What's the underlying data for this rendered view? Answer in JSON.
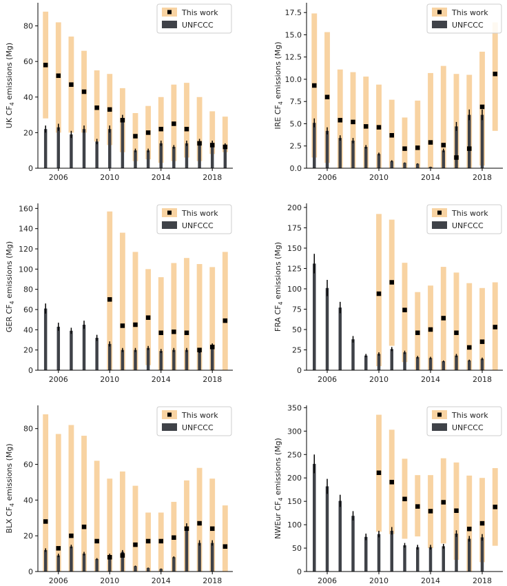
{
  "legend": {
    "work_label": "This work",
    "unfccc_label": "UNFCCC"
  },
  "colors": {
    "range": "#f8d3a2",
    "work": "#000000",
    "unfccc": "#3f4248",
    "error": "#000000",
    "axis": "#000000"
  },
  "chart_data": [
    {
      "id": "uk",
      "type": "bar",
      "title": "",
      "ylabel_pre": "UK CF",
      "ylabel_sub": "4",
      "ylabel_post": " emissions (Mg)",
      "ylim": [
        0,
        93
      ],
      "yticks": [
        0,
        20,
        40,
        60,
        80
      ],
      "xlim": [
        2004.4,
        2019.6
      ],
      "xticks": [
        2006,
        2010,
        2014,
        2018
      ],
      "xtick_labels": [
        "2006",
        "2010",
        "2014",
        "2018"
      ],
      "legend_position": "top-right",
      "series": [
        {
          "name": "This work",
          "kind": "range-and-point",
          "x": [
            2005,
            2006,
            2007,
            2008,
            2009,
            2010,
            2011,
            2012,
            2013,
            2014,
            2015,
            2016,
            2017,
            2018,
            2019
          ],
          "low": [
            28,
            20,
            20,
            20,
            15,
            13,
            9,
            4,
            5,
            3,
            4,
            6,
            4,
            8,
            9
          ],
          "high": [
            88,
            82,
            74,
            66,
            55,
            53,
            45,
            31,
            35,
            40,
            47,
            48,
            40,
            32,
            29
          ],
          "value": [
            58,
            52,
            47,
            43,
            34,
            33,
            27,
            18,
            20,
            22,
            25,
            22,
            14,
            13,
            12
          ]
        },
        {
          "name": "UNFCCC",
          "kind": "bar-with-error",
          "x": [
            2005,
            2006,
            2007,
            2008,
            2009,
            2010,
            2011,
            2012,
            2013,
            2014,
            2015,
            2016,
            2017,
            2018,
            2019
          ],
          "value": [
            22,
            23,
            19,
            22,
            15,
            22,
            28,
            10,
            10,
            14,
            12,
            14,
            15,
            14,
            13
          ],
          "error": [
            2,
            2,
            2,
            2,
            1.5,
            2,
            2,
            1,
            1,
            1.5,
            1,
            1.5,
            1.5,
            1.5,
            1
          ]
        }
      ]
    },
    {
      "id": "ire",
      "type": "bar",
      "title": "",
      "ylabel_pre": "IRE CF",
      "ylabel_sub": "4",
      "ylabel_post": " emissions (Mg)",
      "ylim": [
        0,
        18.6
      ],
      "yticks": [
        0,
        2.5,
        5,
        7.5,
        10,
        12.5,
        15,
        17.5
      ],
      "ytick_labels": [
        "0.0",
        "2.5",
        "5.0",
        "7.5",
        "10.0",
        "12.5",
        "15.0",
        "17.5"
      ],
      "xlim": [
        2004.4,
        2019.6
      ],
      "xticks": [
        2006,
        2010,
        2014,
        2018
      ],
      "xtick_labels": [
        "2006",
        "2010",
        "2014",
        "2018"
      ],
      "legend_position": "top-right",
      "series": [
        {
          "name": "This work",
          "kind": "range-and-point",
          "x": [
            2005,
            2006,
            2007,
            2008,
            2009,
            2010,
            2011,
            2012,
            2013,
            2014,
            2015,
            2016,
            2017,
            2018,
            2019
          ],
          "low": [
            1.2,
            0.6,
            0,
            0,
            0,
            0,
            0,
            0,
            0,
            0,
            0,
            0,
            0,
            0.3,
            4.2
          ],
          "high": [
            17.4,
            15.3,
            11.1,
            10.8,
            10.3,
            9.4,
            7.7,
            5.7,
            7.6,
            10.7,
            11.5,
            10.6,
            10.5,
            13.1,
            16.4
          ],
          "value": [
            9.3,
            8.0,
            5.4,
            5.2,
            4.7,
            4.6,
            3.7,
            2.2,
            2.3,
            2.9,
            2.6,
            1.2,
            2.2,
            6.9,
            10.6
          ]
        },
        {
          "name": "UNFCCC",
          "kind": "bar-with-error",
          "x": [
            2005,
            2006,
            2007,
            2008,
            2009,
            2010,
            2011,
            2012,
            2013,
            2014,
            2015,
            2016,
            2017,
            2018,
            2019
          ],
          "value": [
            5.1,
            4.2,
            3.4,
            3.1,
            2.4,
            1.6,
            0.8,
            0.6,
            0.5,
            0.15,
            2.0,
            4.7,
            6.0,
            6.0,
            null
          ],
          "error": [
            0.5,
            0.4,
            0.3,
            0.3,
            0.2,
            0.15,
            0.1,
            0.05,
            0.05,
            0.02,
            0.2,
            0.5,
            0.6,
            0.6,
            0
          ]
        }
      ]
    },
    {
      "id": "ger",
      "type": "bar",
      "title": "",
      "ylabel_pre": "GER CF",
      "ylabel_sub": "4",
      "ylabel_post": " emissions (Mg)",
      "ylim": [
        0,
        165
      ],
      "yticks": [
        0,
        20,
        40,
        60,
        80,
        100,
        120,
        140,
        160
      ],
      "xlim": [
        2004.4,
        2019.6
      ],
      "xticks": [
        2006,
        2010,
        2014,
        2018
      ],
      "xtick_labels": [
        "2006",
        "2010",
        "2014",
        "2018"
      ],
      "legend_position": "top-right",
      "series": [
        {
          "name": "This work",
          "kind": "range-and-point",
          "x": [
            2010,
            2011,
            2012,
            2013,
            2014,
            2015,
            2016,
            2017,
            2018,
            2019
          ],
          "low": [
            0,
            0,
            0,
            5,
            0,
            0,
            0,
            0,
            0,
            0
          ],
          "high": [
            157,
            136,
            117,
            100,
            92,
            106,
            111,
            105,
            102,
            117
          ],
          "value": [
            70,
            44,
            45,
            52,
            37,
            38,
            37,
            20,
            23,
            49
          ]
        },
        {
          "name": "UNFCCC",
          "kind": "bar-with-error",
          "x": [
            2005,
            2006,
            2007,
            2008,
            2009,
            2010,
            2011,
            2012,
            2013,
            2014,
            2015,
            2016,
            2017,
            2018,
            2019
          ],
          "value": [
            61,
            43,
            39,
            45,
            32,
            26,
            20,
            20,
            22,
            19,
            20,
            20,
            19,
            24,
            null
          ],
          "error": [
            5,
            4,
            3,
            4,
            3,
            2.5,
            2,
            2,
            2,
            2,
            2,
            2,
            2,
            2.5,
            0
          ]
        }
      ]
    },
    {
      "id": "fra",
      "type": "bar",
      "title": "",
      "ylabel_pre": "FRA CF",
      "ylabel_sub": "4",
      "ylabel_post": " emissions (Mg)",
      "ylim": [
        0,
        205
      ],
      "yticks": [
        0,
        25,
        50,
        75,
        100,
        125,
        150,
        175,
        200
      ],
      "xlim": [
        2004.4,
        2019.6
      ],
      "xticks": [
        2006,
        2010,
        2014,
        2018
      ],
      "xtick_labels": [
        "2006",
        "2010",
        "2014",
        "2018"
      ],
      "legend_position": "top-right",
      "series": [
        {
          "name": "This work",
          "kind": "range-and-point",
          "x": [
            2010,
            2011,
            2012,
            2013,
            2014,
            2015,
            2016,
            2017,
            2018,
            2019
          ],
          "low": [
            5,
            30,
            10,
            0,
            0,
            0,
            0,
            0,
            0,
            0
          ],
          "high": [
            192,
            185,
            132,
            96,
            104,
            127,
            120,
            107,
            101,
            108
          ],
          "value": [
            94,
            108,
            74,
            46,
            50,
            64,
            46,
            28,
            35,
            53
          ]
        },
        {
          "name": "UNFCCC",
          "kind": "bar-with-error",
          "x": [
            2005,
            2006,
            2007,
            2008,
            2009,
            2010,
            2011,
            2012,
            2013,
            2014,
            2015,
            2016,
            2017,
            2018,
            2019
          ],
          "value": [
            131,
            101,
            77,
            38,
            18,
            20,
            26,
            22,
            16,
            15,
            11,
            18,
            12,
            14,
            null
          ],
          "error": [
            12,
            10,
            7,
            4,
            2,
            2,
            2.5,
            2,
            1.5,
            1.5,
            1,
            2,
            1,
            1.5,
            0
          ]
        }
      ]
    },
    {
      "id": "blx",
      "type": "bar",
      "title": "",
      "ylabel_pre": "BLX CF",
      "ylabel_sub": "4",
      "ylabel_post": " emissions (Mg)",
      "ylim": [
        0,
        93
      ],
      "yticks": [
        0,
        20,
        40,
        60,
        80
      ],
      "xlim": [
        2004.4,
        2019.6
      ],
      "xticks": [
        2006,
        2010,
        2014,
        2018
      ],
      "xtick_labels": [
        "2006",
        "2010",
        "2014",
        "2018"
      ],
      "legend_position": "top-right",
      "series": [
        {
          "name": "This work",
          "kind": "range-and-point",
          "x": [
            2005,
            2006,
            2007,
            2008,
            2009,
            2010,
            2011,
            2012,
            2013,
            2014,
            2015,
            2016,
            2017,
            2018,
            2019
          ],
          "low": [
            0,
            0,
            0,
            0,
            0,
            0,
            0,
            0,
            0,
            0,
            0,
            0,
            0,
            0,
            0
          ],
          "high": [
            88,
            77,
            82,
            76,
            62,
            52,
            56,
            48,
            33,
            33,
            39,
            51,
            58,
            52,
            37
          ],
          "value": [
            28,
            13,
            20,
            25,
            17,
            8,
            9,
            15,
            17,
            17,
            19,
            24,
            27,
            24,
            14
          ]
        },
        {
          "name": "UNFCCC",
          "kind": "bar-with-error",
          "x": [
            2005,
            2006,
            2007,
            2008,
            2009,
            2010,
            2011,
            2012,
            2013,
            2014,
            2015,
            2016,
            2017,
            2018,
            2019
          ],
          "value": [
            12,
            9,
            14,
            10,
            7,
            9,
            11,
            3,
            2,
            1.5,
            8,
            25,
            16,
            16,
            null
          ],
          "error": [
            1,
            1,
            1,
            1,
            0.5,
            1,
            1,
            0.3,
            0.2,
            0.2,
            0.5,
            2,
            1.5,
            1.5,
            0
          ]
        }
      ]
    },
    {
      "id": "nweur",
      "type": "bar",
      "title": "",
      "ylabel_pre": "NWEur CF",
      "ylabel_sub": "4",
      "ylabel_post": " emissions (Mg)",
      "ylim": [
        0,
        355
      ],
      "yticks": [
        0,
        50,
        100,
        150,
        200,
        250,
        300,
        350
      ],
      "xlim": [
        2004.4,
        2019.6
      ],
      "xticks": [
        2006,
        2010,
        2014,
        2018
      ],
      "xtick_labels": [
        "2006",
        "2010",
        "2014",
        "2018"
      ],
      "legend_position": "top-right",
      "series": [
        {
          "name": "This work",
          "kind": "range-and-point",
          "x": [
            2010,
            2011,
            2012,
            2013,
            2014,
            2015,
            2016,
            2017,
            2018,
            2019
          ],
          "low": [
            85,
            80,
            70,
            75,
            50,
            60,
            25,
            0,
            20,
            55
          ],
          "high": [
            335,
            303,
            241,
            206,
            206,
            242,
            233,
            205,
            200,
            221
          ],
          "value": [
            211,
            191,
            155,
            139,
            129,
            148,
            130,
            91,
            103,
            138
          ]
        },
        {
          "name": "UNFCCC",
          "kind": "bar-with-error",
          "x": [
            2005,
            2006,
            2007,
            2008,
            2009,
            2010,
            2011,
            2012,
            2013,
            2014,
            2015,
            2016,
            2017,
            2018,
            2019
          ],
          "value": [
            230,
            182,
            151,
            119,
            74,
            80,
            87,
            56,
            52,
            52,
            54,
            81,
            70,
            73,
            null
          ],
          "error": [
            20,
            16,
            13,
            10,
            7,
            7,
            8,
            5,
            5,
            5,
            5,
            7,
            6,
            7,
            0
          ]
        }
      ]
    }
  ]
}
